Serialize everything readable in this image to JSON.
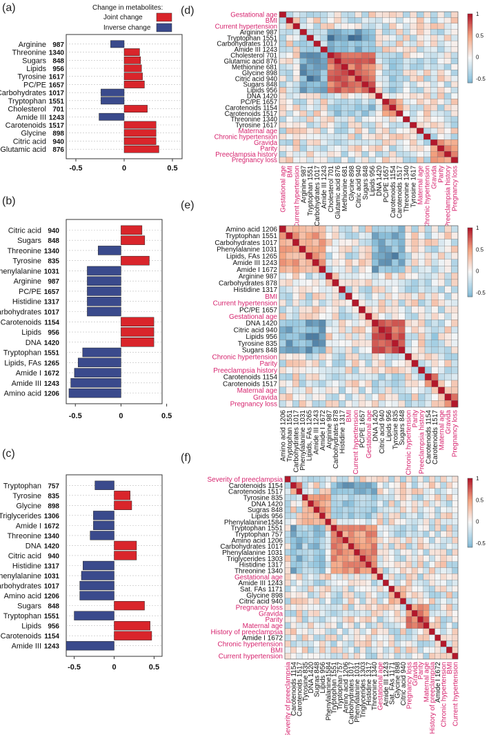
{
  "figure": {
    "legend_title": "Change in metabolites:",
    "legend_joint": "Joint change",
    "legend_inverse": "Inverse change",
    "colors": {
      "joint": "#d9252b",
      "inverse": "#3a4a8c",
      "hm_pos": "#b2182b",
      "hm_neg": "#053061",
      "hm_mid": "#f7f7f7",
      "var_text": "#d6246e"
    }
  },
  "chart_data": [
    {
      "panel": "(a)",
      "type": "bar",
      "orientation": "horizontal",
      "xlim": [
        -0.6,
        0.6
      ],
      "xticks": [
        -0.5,
        0,
        0.5
      ],
      "categories": [
        "Arginine",
        "Threonine",
        "Sugars",
        "Lipids",
        "Tyrosine",
        "PC/PE",
        "Carbohydrates",
        "Tryptophan",
        "Cholesterol",
        "Amide III",
        "Carotenoids",
        "Glycine",
        "Citric acid",
        "Glutamic acid"
      ],
      "wavenumbers": [
        "987",
        "1340",
        "848",
        "956",
        "1617",
        "1657",
        "1017",
        "1551",
        "701",
        "1243",
        "1517",
        "898",
        "940",
        "876"
      ],
      "values": [
        -0.14,
        0.16,
        0.17,
        0.18,
        0.19,
        0.21,
        -0.24,
        -0.24,
        0.24,
        -0.26,
        0.33,
        0.33,
        0.33,
        0.36
      ]
    },
    {
      "panel": "(b)",
      "type": "bar",
      "orientation": "horizontal",
      "xlim": [
        -0.6,
        0.45
      ],
      "xticks": [
        -0.5,
        0,
        0.5
      ],
      "categories": [
        "Citric acid",
        "Sugars",
        "Threonine",
        "Tyrosine",
        "Phenylalanine",
        "Arginine",
        "PC/PE",
        "Histidine",
        "Carbohydrates",
        "Carotenoids",
        "Lipids",
        "DNA",
        "Tryptophan",
        "Lipids, FAs",
        "Amide I",
        "Amide III",
        "Amino acid"
      ],
      "wavenumbers": [
        "940",
        "848",
        "1340",
        "835",
        "1031",
        "987",
        "1657",
        "1317",
        "1017",
        "1154",
        "956",
        "1420",
        "1551",
        "1265",
        "1672",
        "1243",
        "1206"
      ],
      "values": [
        0.23,
        0.26,
        -0.25,
        0.31,
        -0.37,
        -0.37,
        -0.37,
        -0.37,
        -0.37,
        0.36,
        0.36,
        0.36,
        -0.42,
        -0.47,
        -0.51,
        -0.55,
        -0.57
      ]
    },
    {
      "panel": "(c)",
      "type": "bar",
      "orientation": "horizontal",
      "xlim": [
        -0.6,
        0.6
      ],
      "xticks": [
        -0.5,
        0,
        0.5
      ],
      "categories": [
        "Tryptophan",
        "Tyrosine",
        "Glycine",
        "Triglycerides",
        "Amide I",
        "Threonine",
        "DNA",
        "Citric acid",
        "Histidine",
        "Phenylalanine",
        "Carbohydrates",
        "Amino acid",
        "Sugars",
        "Tryptophan",
        "Lipids",
        "Carotenoids",
        "Amide III"
      ],
      "wavenumbers": [
        "757",
        "835",
        "898",
        "1306",
        "1672",
        "1340",
        "1420",
        "940",
        "1317",
        "1031",
        "1017",
        "1206",
        "848",
        "1551",
        "956",
        "1154",
        "1243"
      ],
      "values": [
        -0.24,
        0.2,
        0.22,
        -0.26,
        -0.26,
        -0.3,
        0.28,
        0.28,
        -0.39,
        -0.41,
        -0.43,
        -0.43,
        0.38,
        -0.5,
        0.45,
        0.47,
        -0.6
      ]
    },
    {
      "panel": "(d)",
      "type": "heatmap",
      "legend_ticks": [
        "1",
        "0.5",
        "0",
        "-0.5"
      ],
      "labels": [
        "Gestational age",
        "BMI",
        "Current hypertension",
        "Arginine 987",
        "Tryptophan 1551",
        "Carbohydrates 1017",
        "Amide III 1243",
        "Cholesterol 701",
        "Glutamic acid 876",
        "Methionine 681",
        "Glycine 898",
        "Citric acid 940",
        "Sugars  848",
        "Lipids 956",
        "DNA 1420",
        "PC/PE 1657",
        "Carotenoids 1154",
        "Carotenoids 1517",
        "Threonine 1340",
        "Tyrosine 1617",
        "Maternal age",
        "Chronic hypertension",
        "Gravida",
        "Parity",
        "Preeclampsia history",
        "Pregnancy loss"
      ],
      "is_variable": [
        true,
        true,
        true,
        false,
        false,
        false,
        false,
        false,
        false,
        false,
        false,
        false,
        false,
        false,
        false,
        false,
        false,
        false,
        false,
        false,
        true,
        true,
        true,
        true,
        true,
        true
      ],
      "blocks": [
        [
          3,
          6,
          -0.3
        ],
        [
          7,
          13,
          0.7
        ],
        [
          15,
          17,
          0.55
        ],
        [
          22,
          25,
          0.5
        ]
      ],
      "cross": [
        [
          3,
          7,
          13,
          -0.6
        ],
        [
          4,
          7,
          13,
          -0.65
        ],
        [
          5,
          7,
          13,
          -0.55
        ],
        [
          6,
          7,
          13,
          -0.5
        ],
        [
          15,
          7,
          13,
          -0.3
        ],
        [
          16,
          7,
          13,
          -0.45
        ],
        [
          17,
          7,
          13,
          -0.4
        ]
      ]
    },
    {
      "panel": "(e)",
      "type": "heatmap",
      "legend_ticks": [
        "1",
        "0.5",
        "0",
        "-0.5"
      ],
      "labels": [
        "Amino acid 1206",
        "Tryptophan 1551",
        "Carbohydrates 1017",
        "Phenylalanine 1031",
        "Lipids, FAs 1265",
        "Amide III 1243",
        "Amide I 1672",
        "Arginine 987",
        "Carbohydrates  878",
        "Histidine 1317",
        "BMI",
        "Current hypertension",
        "PC/PE 1657",
        "Gestational age",
        "DNA 1420",
        "Citric acid 940",
        "Lipids 956",
        "Tyrosine 835",
        "Sugars  848",
        "Chronic hypertension",
        "Parity",
        "Preeclampsia history",
        "Carotenoids 1154",
        "Carotenoids 1517",
        "Maternal age",
        "Gravida",
        "Pregnancy loss"
      ],
      "is_variable": [
        false,
        false,
        false,
        false,
        false,
        false,
        false,
        false,
        false,
        false,
        true,
        true,
        false,
        true,
        false,
        false,
        false,
        false,
        false,
        true,
        true,
        true,
        false,
        false,
        true,
        true,
        true
      ],
      "blocks": [
        [
          0,
          6,
          0.45
        ],
        [
          14,
          18,
          0.75
        ],
        [
          22,
          23,
          0.6
        ],
        [
          25,
          26,
          0.7
        ]
      ],
      "cross": [
        [
          0,
          14,
          18,
          -0.45
        ],
        [
          1,
          14,
          18,
          -0.55
        ],
        [
          2,
          14,
          18,
          -0.5
        ],
        [
          3,
          14,
          18,
          -0.5
        ],
        [
          4,
          14,
          18,
          -0.65
        ],
        [
          5,
          14,
          18,
          -0.6
        ],
        [
          6,
          14,
          18,
          -0.55
        ],
        [
          22,
          14,
          18,
          -0.3
        ],
        [
          23,
          14,
          18,
          -0.35
        ]
      ]
    },
    {
      "panel": "(f)",
      "type": "heatmap",
      "legend_ticks": [
        "1",
        "0.5",
        "0",
        "-0.5"
      ],
      "labels": [
        "Severity of preeclampsia",
        "Carotenoids 1154",
        "Carotenoids 1517",
        "Tyrosine 835",
        "DNA 1420",
        "Sugras 848",
        "Lipids 956",
        "Phenylalanine1584",
        "Tryptophan 1551",
        "Tryptophan 757",
        "Amino acid 1206",
        "Carbohydrates 1017",
        "Phenylalanine 1031",
        "Triglycerides 1303",
        "Histidine 1317",
        "Threonine 1340",
        "Gestational age",
        "Amide III 1243",
        "Sat. FAs 1171",
        "Glycine 898",
        "Citric acid 940",
        "Pregnancy loss",
        "Gravida",
        "Parity",
        "Maternal age",
        "History of preeclampsia",
        "Amide I 1672",
        "Chronic hypertension",
        "BMI",
        "Current hypertension"
      ],
      "is_variable": [
        true,
        false,
        false,
        false,
        false,
        false,
        false,
        false,
        false,
        false,
        false,
        false,
        false,
        false,
        false,
        false,
        true,
        false,
        false,
        false,
        false,
        true,
        true,
        true,
        true,
        true,
        false,
        true,
        true,
        true
      ],
      "blocks": [
        [
          1,
          2,
          0.55
        ],
        [
          3,
          7,
          0.5
        ],
        [
          8,
          15,
          0.55
        ],
        [
          18,
          20,
          0.35
        ],
        [
          21,
          24,
          0.6
        ]
      ],
      "cross": [
        [
          1,
          8,
          15,
          -0.55
        ],
        [
          2,
          8,
          15,
          -0.5
        ],
        [
          3,
          8,
          15,
          -0.35
        ],
        [
          4,
          8,
          15,
          -0.4
        ],
        [
          5,
          8,
          15,
          -0.45
        ],
        [
          6,
          8,
          15,
          -0.4
        ],
        [
          17,
          3,
          7,
          -0.3
        ]
      ]
    }
  ]
}
